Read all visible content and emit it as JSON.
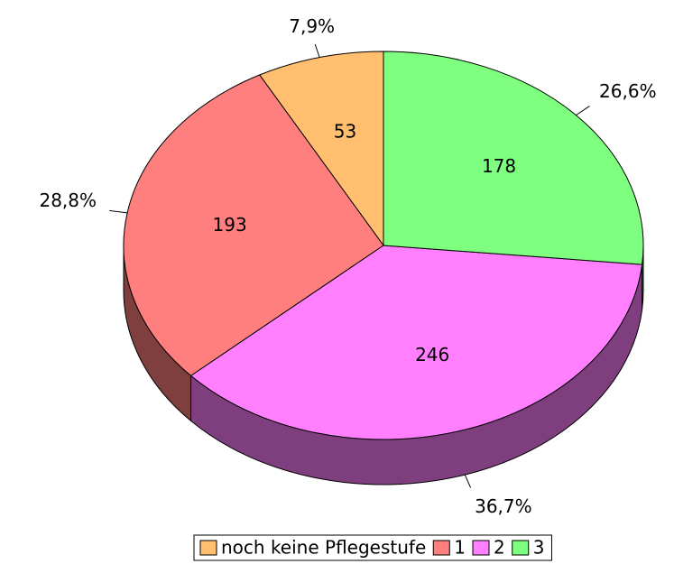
{
  "chart_data": {
    "type": "pie3d",
    "categories": [
      "noch keine Pflegestufe",
      "1",
      "2",
      "3"
    ],
    "values": [
      53,
      193,
      246,
      178
    ],
    "percent_labels": [
      "7,9%",
      "28,8%",
      "36,7%",
      "26,6%"
    ],
    "colors": [
      "#ffbf6f",
      "#ff7f7f",
      "#ff7fff",
      "#7fff7f"
    ],
    "side_colors": [
      "#7f5f37",
      "#7f3f3f",
      "#7f3f7f",
      "#3f7f3f"
    ],
    "legend": "bottom"
  }
}
